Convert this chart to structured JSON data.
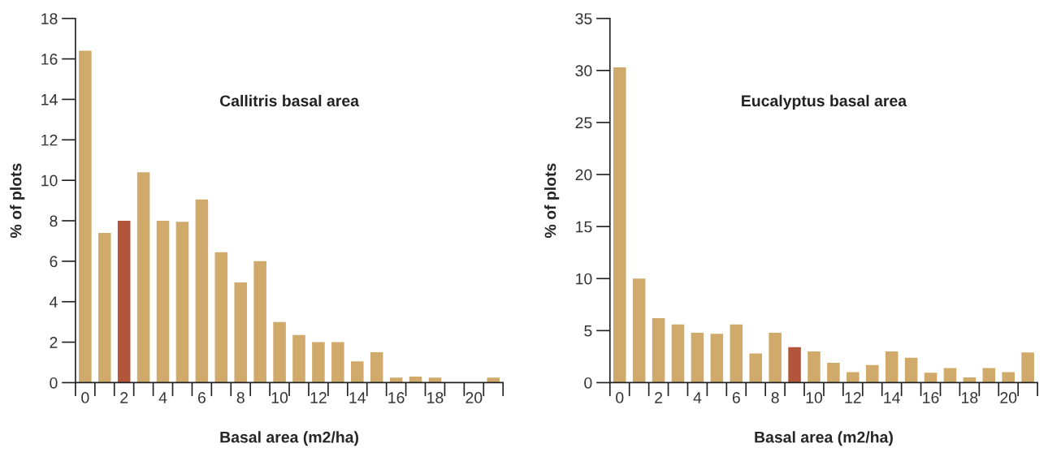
{
  "chart_data": [
    {
      "type": "bar",
      "title": "Callitris basal area",
      "xlabel": "Basal area (m2/ha)",
      "ylabel": "% of plots",
      "x": [
        0,
        1,
        2,
        3,
        4,
        5,
        6,
        7,
        8,
        9,
        10,
        11,
        12,
        13,
        14,
        15,
        16,
        17,
        18,
        19,
        20,
        21
      ],
      "values": [
        16.4,
        7.4,
        8.0,
        10.4,
        8.0,
        7.95,
        9.05,
        6.45,
        4.95,
        6.0,
        3.0,
        2.35,
        2.0,
        2.0,
        1.05,
        1.5,
        0.25,
        0.3,
        0.25,
        0,
        0,
        0.25
      ],
      "colors": [
        "#cfaa6a",
        "#cfaa6a",
        "#b3553a",
        "#cfaa6a",
        "#cfaa6a",
        "#cfaa6a",
        "#cfaa6a",
        "#cfaa6a",
        "#cfaa6a",
        "#cfaa6a",
        "#cfaa6a",
        "#cfaa6a",
        "#cfaa6a",
        "#cfaa6a",
        "#cfaa6a",
        "#cfaa6a",
        "#cfaa6a",
        "#cfaa6a",
        "#cfaa6a",
        "#cfaa6a",
        "#cfaa6a",
        "#cfaa6a"
      ],
      "xlim": [
        -0.5,
        21.5
      ],
      "xticks": [
        0,
        2,
        4,
        6,
        8,
        10,
        12,
        14,
        16,
        18,
        20
      ],
      "ylim": [
        0,
        18
      ],
      "yticks": [
        0,
        2,
        4,
        6,
        8,
        10,
        12,
        14,
        16,
        18
      ],
      "grid": false,
      "legend": false
    },
    {
      "type": "bar",
      "title": "Eucalyptus basal area",
      "xlabel": "Basal area (m2/ha)",
      "ylabel": "% of plots",
      "x": [
        0,
        1,
        2,
        3,
        4,
        5,
        6,
        7,
        8,
        9,
        10,
        11,
        12,
        13,
        14,
        15,
        16,
        17,
        18,
        19,
        20,
        21
      ],
      "values": [
        30.3,
        10.0,
        6.2,
        5.6,
        4.8,
        4.7,
        5.6,
        2.8,
        4.8,
        3.4,
        3.0,
        1.9,
        1.0,
        1.7,
        3.0,
        2.4,
        0.95,
        1.4,
        0.5,
        1.4,
        1.0,
        2.9
      ],
      "colors": [
        "#cfaa6a",
        "#cfaa6a",
        "#cfaa6a",
        "#cfaa6a",
        "#cfaa6a",
        "#cfaa6a",
        "#cfaa6a",
        "#cfaa6a",
        "#cfaa6a",
        "#b3553a",
        "#cfaa6a",
        "#cfaa6a",
        "#cfaa6a",
        "#cfaa6a",
        "#cfaa6a",
        "#cfaa6a",
        "#cfaa6a",
        "#cfaa6a",
        "#cfaa6a",
        "#cfaa6a",
        "#cfaa6a",
        "#cfaa6a"
      ],
      "xlim": [
        -0.5,
        21.5
      ],
      "xticks": [
        0,
        2,
        4,
        6,
        8,
        10,
        12,
        14,
        16,
        18,
        20
      ],
      "ylim": [
        0,
        35
      ],
      "yticks": [
        0,
        5,
        10,
        15,
        20,
        25,
        30,
        35
      ],
      "grid": false,
      "legend": false
    }
  ]
}
